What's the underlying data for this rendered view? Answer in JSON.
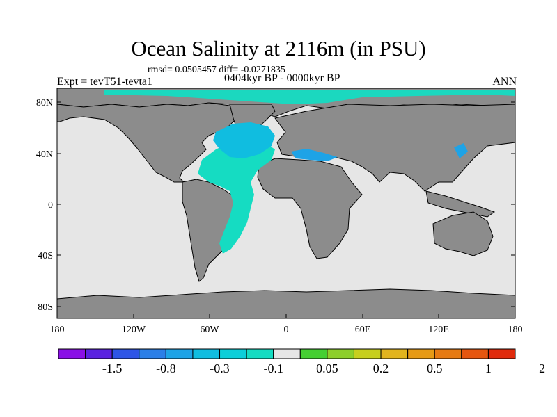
{
  "title": "Ocean Salinity at 2116m (in PSU)",
  "stats_line": "rmsd= 0.0505457 diff= -0.0271835",
  "left_string": "Expt = tevT51-tevta1",
  "center_string": "0404kyr BP - 0000kyr BP",
  "right_string": "ANN",
  "map": {
    "projection": "cylindrical-equidistant",
    "lon_range": [
      -180,
      180
    ],
    "lat_range": [
      -90,
      90
    ],
    "x_ticks": [
      "180",
      "120W",
      "60W",
      "0",
      "60E",
      "120E",
      "180"
    ],
    "y_ticks": [
      "80N",
      "40N",
      "0",
      "40S",
      "80S"
    ],
    "colors": {
      "land": "#8c8c8c",
      "ocean_near_zero": "#e6e6e6",
      "coast_line": "#000000"
    }
  },
  "colorbar": {
    "labels": [
      "-1.5",
      "-0.8",
      "-0.3",
      "-0.1",
      "0.05",
      "0.2",
      "0.5",
      "1",
      "2"
    ],
    "colors": [
      "#8a0fe6",
      "#5a22e0",
      "#2e55e6",
      "#2b7fe8",
      "#1ea3e6",
      "#10bde0",
      "#0ccfd9",
      "#15dcc2",
      "#e6e6e6",
      "#45cf32",
      "#8dcf2a",
      "#c7cf1e",
      "#e2b41e",
      "#e69a15",
      "#e67a12",
      "#e6560f",
      "#e02a0c"
    ]
  }
}
